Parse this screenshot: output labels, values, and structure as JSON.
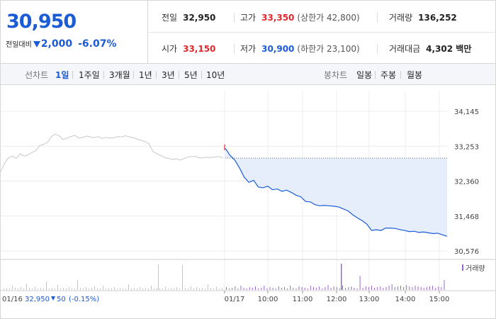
{
  "quote": {
    "price": "30,950",
    "change_label": "전일대비",
    "change_value": "2,000",
    "change_pct": "-6.07%"
  },
  "stats": {
    "prev_close_label": "전일",
    "prev_close": "32,950",
    "high_label": "고가",
    "high": "33,350",
    "upper_limit": "(상한가 42,800)",
    "volume_label": "거래량",
    "volume": "136,252",
    "open_label": "시가",
    "open": "33,150",
    "low_label": "저가",
    "low": "30,900",
    "lower_limit": "(하한가 23,100)",
    "amount_label": "거래대금",
    "amount": "4,302 백만"
  },
  "toolbar": {
    "line_chart_label": "선차트",
    "line_periods": [
      "1일",
      "1주일",
      "3개월",
      "1년",
      "3년",
      "5년",
      "10년"
    ],
    "active_period": "1일",
    "candle_chart_label": "봉차트",
    "candle_periods": [
      "일봉",
      "주봉",
      "월봉"
    ]
  },
  "chart_data": {
    "type": "line",
    "y_ticks": [
      "34,145",
      "33,253",
      "32,360",
      "31,468",
      "30,576"
    ],
    "ylim": [
      30576,
      34145
    ],
    "x_ticks": [
      "01/17",
      "10:00",
      "11:00",
      "12:00",
      "13:00",
      "14:00",
      "15:00"
    ],
    "prev_day_label": "01/16",
    "prev_day_summary_price": "32,950",
    "prev_day_summary_change": "50",
    "prev_day_summary_pct": "(-0.15%)",
    "prev_close_ref": 32950,
    "volume_legend": "거래량",
    "colors": {
      "today": "#1a5bd6",
      "prev": "#c8c8c8",
      "fill": "#e6edfb",
      "up": "#e0272c",
      "volume": "#9966cc"
    },
    "series": [
      {
        "values": [
          32600,
          32820,
          32960,
          33000,
          32940,
          33060,
          33000,
          33030,
          33090,
          33140,
          33270,
          33300,
          33350,
          33500,
          33560,
          33520,
          33420,
          33460,
          33500,
          33530,
          33460,
          33480,
          33510,
          33490,
          33470,
          33500,
          33450,
          33480,
          33460,
          33470,
          33500,
          33490,
          33520,
          33490,
          33470,
          33430,
          33400,
          33370,
          33310,
          33120,
          33060,
          33020,
          32960,
          32940,
          32920,
          32930,
          32900,
          32940,
          32980,
          32990,
          32990,
          32950,
          32960,
          32970,
          32960,
          32980,
          32990,
          32950
        ]
      },
      {
        "values": [
          33200,
          33020,
          32900,
          32700,
          32460,
          32330,
          32380,
          32210,
          32190,
          32230,
          32140,
          32160,
          32100,
          32130,
          32070,
          32000,
          31960,
          31840,
          31830,
          31760,
          31730,
          31740,
          31730,
          31720,
          31700,
          31650,
          31600,
          31500,
          31420,
          31350,
          31260,
          31100,
          31120,
          31100,
          31160,
          31160,
          31150,
          31120,
          31100,
          31070,
          31080,
          31050,
          31060,
          31040,
          31020,
          31030,
          30990,
          30950
        ]
      }
    ]
  }
}
